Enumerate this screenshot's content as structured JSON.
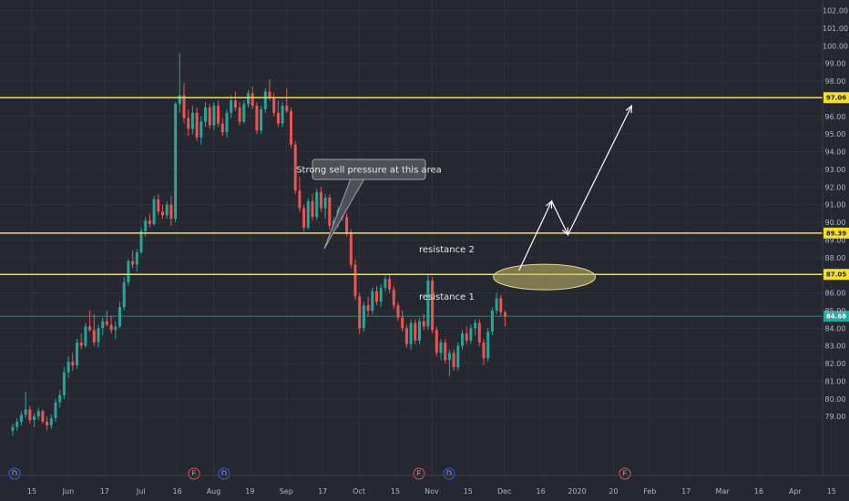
{
  "chart_data": {
    "type": "candlestick",
    "title": "",
    "xlabel": "",
    "ylabel": "",
    "ylim": [
      78.3,
      102.3
    ],
    "x_ticks": [
      "15",
      "Jun",
      "17",
      "Jul",
      "16",
      "Aug",
      "19",
      "Sep",
      "17",
      "Oct",
      "15",
      "Nov",
      "15",
      "Dec",
      "16",
      "2020",
      "20",
      "Feb",
      "17",
      "Mar",
      "16",
      "Apr",
      "15"
    ],
    "y_ticks": [
      79.0,
      80.0,
      81.0,
      82.0,
      83.0,
      84.0,
      85.0,
      86.0,
      88.0,
      89.0,
      90.0,
      91.0,
      92.0,
      93.0,
      94.0,
      95.0,
      96.0,
      98.0,
      99.0,
      100.0,
      101.0,
      102.0
    ],
    "y_ticks_str": [
      "79.00",
      "80.00",
      "81.00",
      "82.00",
      "83.00",
      "84.00",
      "85.00",
      "86.00",
      "88.00",
      "89.00",
      "90.00",
      "91.00",
      "92.00",
      "93.00",
      "94.00",
      "95.00",
      "96.00",
      "98.00",
      "99.00",
      "100.00",
      "101.00",
      "102.00"
    ],
    "price_levels": [
      {
        "value": 97.06,
        "label": "97.06",
        "color": "#f5e12b"
      },
      {
        "value": 89.39,
        "label": "89.39",
        "color": "#f5e12b"
      },
      {
        "value": 87.05,
        "label": "87.05",
        "color": "#f5e12b"
      },
      {
        "value": 84.68,
        "label": "84.68",
        "color": "#26a69a"
      }
    ],
    "annotations": {
      "callout": "Strong sell pressure at this area",
      "resistance_1": "resistance 1",
      "resistance_2": "resistance 2"
    },
    "projected_path": [
      [
        86.9,
        89.3
      ],
      [
        89.35,
        91.2
      ],
      [
        90.6,
        89.3
      ],
      [
        89.5,
        96.6
      ]
    ],
    "event_markers": [
      {
        "type": "dividend",
        "label": "D",
        "color": "#2962ff"
      },
      {
        "type": "earnings",
        "label": "E",
        "color": "#ef5350"
      },
      {
        "type": "dividend",
        "label": "D",
        "color": "#2962ff"
      },
      {
        "type": "earnings",
        "label": "E",
        "color": "#ef5350"
      },
      {
        "type": "dividend",
        "label": "D",
        "color": "#2962ff"
      },
      {
        "type": "earnings",
        "label": "E",
        "color": "#ef5350"
      }
    ],
    "candles": [
      [
        78.2,
        78.6,
        77.9,
        78.4
      ],
      [
        78.4,
        78.9,
        78.2,
        78.7
      ],
      [
        78.7,
        79.3,
        78.5,
        79.1
      ],
      [
        79.1,
        80.4,
        78.9,
        79.4
      ],
      [
        79.4,
        79.6,
        78.6,
        78.8
      ],
      [
        78.8,
        79.2,
        78.4,
        79.0
      ],
      [
        79.0,
        79.5,
        78.8,
        79.3
      ],
      [
        79.3,
        79.4,
        78.6,
        78.7
      ],
      [
        78.7,
        79.0,
        78.2,
        78.5
      ],
      [
        78.5,
        79.1,
        78.3,
        78.9
      ],
      [
        78.9,
        80.0,
        78.7,
        79.8
      ],
      [
        79.8,
        80.5,
        79.5,
        80.2
      ],
      [
        80.2,
        81.8,
        80.0,
        81.5
      ],
      [
        81.5,
        82.4,
        81.2,
        82.1
      ],
      [
        82.1,
        82.6,
        81.6,
        81.9
      ],
      [
        81.9,
        83.4,
        81.7,
        83.2
      ],
      [
        83.2,
        83.7,
        82.8,
        83.0
      ],
      [
        83.0,
        84.3,
        82.9,
        84.1
      ],
      [
        84.1,
        85.0,
        83.8,
        83.9
      ],
      [
        83.9,
        84.8,
        83.0,
        83.2
      ],
      [
        83.2,
        84.2,
        82.9,
        84.0
      ],
      [
        84.0,
        84.6,
        83.6,
        84.4
      ],
      [
        84.4,
        85.0,
        84.1,
        84.2
      ],
      [
        84.2,
        84.7,
        83.7,
        83.9
      ],
      [
        83.9,
        84.4,
        83.4,
        84.1
      ],
      [
        84.1,
        85.5,
        84.0,
        85.2
      ],
      [
        85.2,
        86.9,
        85.0,
        86.6
      ],
      [
        86.6,
        87.9,
        86.4,
        87.8
      ],
      [
        87.8,
        88.4,
        87.4,
        87.6
      ],
      [
        87.6,
        88.5,
        87.2,
        88.3
      ],
      [
        88.3,
        89.7,
        88.2,
        89.5
      ],
      [
        89.5,
        90.3,
        89.2,
        90.1
      ],
      [
        90.1,
        90.5,
        89.7,
        89.9
      ],
      [
        89.9,
        91.5,
        89.8,
        91.3
      ],
      [
        91.3,
        91.6,
        90.4,
        90.6
      ],
      [
        90.6,
        91.0,
        90.2,
        90.4
      ],
      [
        90.4,
        91.2,
        90.2,
        91.0
      ],
      [
        91.0,
        91.5,
        89.8,
        90.2
      ],
      [
        90.2,
        96.8,
        90.0,
        96.7
      ],
      [
        96.7,
        99.6,
        96.2,
        97.2
      ],
      [
        97.2,
        97.9,
        95.6,
        95.9
      ],
      [
        95.9,
        96.4,
        94.9,
        95.3
      ],
      [
        95.3,
        96.6,
        95.0,
        96.2
      ],
      [
        96.2,
        96.5,
        94.6,
        94.8
      ],
      [
        94.8,
        96.0,
        94.4,
        95.7
      ],
      [
        95.7,
        96.8,
        95.4,
        96.5
      ],
      [
        96.5,
        96.7,
        95.3,
        95.5
      ],
      [
        95.5,
        96.8,
        95.2,
        96.6
      ],
      [
        96.6,
        96.9,
        95.4,
        95.6
      ],
      [
        95.6,
        95.9,
        94.9,
        95.1
      ],
      [
        95.1,
        96.4,
        94.8,
        96.2
      ],
      [
        96.2,
        97.2,
        95.9,
        96.9
      ],
      [
        96.9,
        97.4,
        96.3,
        96.5
      ],
      [
        96.5,
        96.8,
        95.5,
        95.7
      ],
      [
        95.7,
        96.9,
        95.6,
        96.7
      ],
      [
        96.7,
        97.5,
        96.5,
        97.3
      ],
      [
        97.3,
        97.7,
        96.4,
        96.6
      ],
      [
        96.6,
        96.8,
        95.0,
        95.2
      ],
      [
        95.2,
        96.6,
        95.0,
        96.4
      ],
      [
        96.4,
        97.6,
        96.2,
        97.4
      ],
      [
        97.4,
        98.1,
        96.9,
        97.1
      ],
      [
        97.1,
        97.3,
        96.0,
        96.2
      ],
      [
        96.2,
        96.9,
        95.4,
        95.6
      ],
      [
        95.6,
        96.8,
        95.4,
        96.6
      ],
      [
        96.6,
        97.6,
        96.2,
        96.3
      ],
      [
        96.3,
        96.5,
        94.2,
        94.4
      ],
      [
        94.4,
        94.6,
        91.6,
        91.8
      ],
      [
        91.8,
        92.6,
        90.6,
        90.8
      ],
      [
        90.8,
        91.0,
        89.5,
        89.7
      ],
      [
        89.7,
        91.4,
        89.6,
        91.2
      ],
      [
        91.2,
        91.6,
        90.1,
        90.3
      ],
      [
        90.3,
        91.9,
        90.1,
        91.7
      ],
      [
        91.7,
        92.0,
        90.6,
        90.8
      ],
      [
        90.8,
        91.6,
        90.2,
        91.4
      ],
      [
        91.4,
        91.6,
        89.6,
        89.8
      ],
      [
        89.8,
        90.3,
        89.4,
        90.1
      ],
      [
        90.1,
        90.9,
        89.7,
        90.7
      ],
      [
        90.7,
        91.2,
        90.1,
        90.3
      ],
      [
        90.3,
        90.5,
        89.2,
        89.4
      ],
      [
        89.4,
        89.6,
        87.4,
        87.6
      ],
      [
        87.6,
        87.9,
        85.6,
        85.8
      ],
      [
        85.8,
        86.0,
        83.7,
        84.0
      ],
      [
        84.0,
        85.5,
        83.8,
        85.3
      ],
      [
        85.3,
        85.8,
        84.7,
        85.0
      ],
      [
        85.0,
        86.3,
        84.8,
        86.1
      ],
      [
        86.1,
        86.4,
        85.3,
        85.5
      ],
      [
        85.5,
        86.5,
        85.2,
        86.3
      ],
      [
        86.3,
        87.0,
        86.1,
        86.8
      ],
      [
        86.8,
        87.1,
        86.0,
        86.2
      ],
      [
        86.2,
        86.4,
        85.1,
        85.3
      ],
      [
        85.3,
        85.5,
        84.4,
        84.6
      ],
      [
        84.6,
        85.0,
        83.8,
        84.0
      ],
      [
        84.0,
        84.2,
        82.9,
        83.1
      ],
      [
        83.1,
        84.5,
        82.8,
        84.3
      ],
      [
        84.3,
        84.5,
        83.1,
        83.3
      ],
      [
        83.3,
        84.6,
        83.1,
        84.4
      ],
      [
        84.4,
        84.8,
        83.9,
        84.1
      ],
      [
        84.1,
        87.0,
        83.9,
        86.7
      ],
      [
        86.7,
        86.9,
        83.7,
        83.9
      ],
      [
        83.9,
        84.1,
        82.4,
        82.6
      ],
      [
        82.6,
        83.4,
        82.2,
        83.2
      ],
      [
        83.2,
        83.4,
        82.0,
        82.2
      ],
      [
        82.2,
        82.8,
        81.3,
        82.6
      ],
      [
        82.6,
        82.8,
        81.6,
        81.8
      ],
      [
        81.8,
        83.2,
        81.6,
        83.0
      ],
      [
        83.0,
        83.9,
        82.8,
        83.7
      ],
      [
        83.7,
        84.1,
        83.1,
        83.3
      ],
      [
        83.3,
        84.2,
        83.1,
        84.0
      ],
      [
        84.0,
        84.5,
        83.6,
        84.3
      ],
      [
        84.3,
        84.5,
        83.0,
        83.2
      ],
      [
        83.2,
        83.4,
        81.9,
        82.3
      ],
      [
        82.3,
        84.0,
        82.1,
        83.8
      ],
      [
        83.8,
        85.2,
        83.6,
        85.0
      ],
      [
        85.0,
        86.0,
        84.8,
        85.7
      ],
      [
        85.7,
        85.9,
        84.7,
        84.9
      ],
      [
        84.9,
        85.0,
        84.1,
        84.68
      ]
    ]
  }
}
